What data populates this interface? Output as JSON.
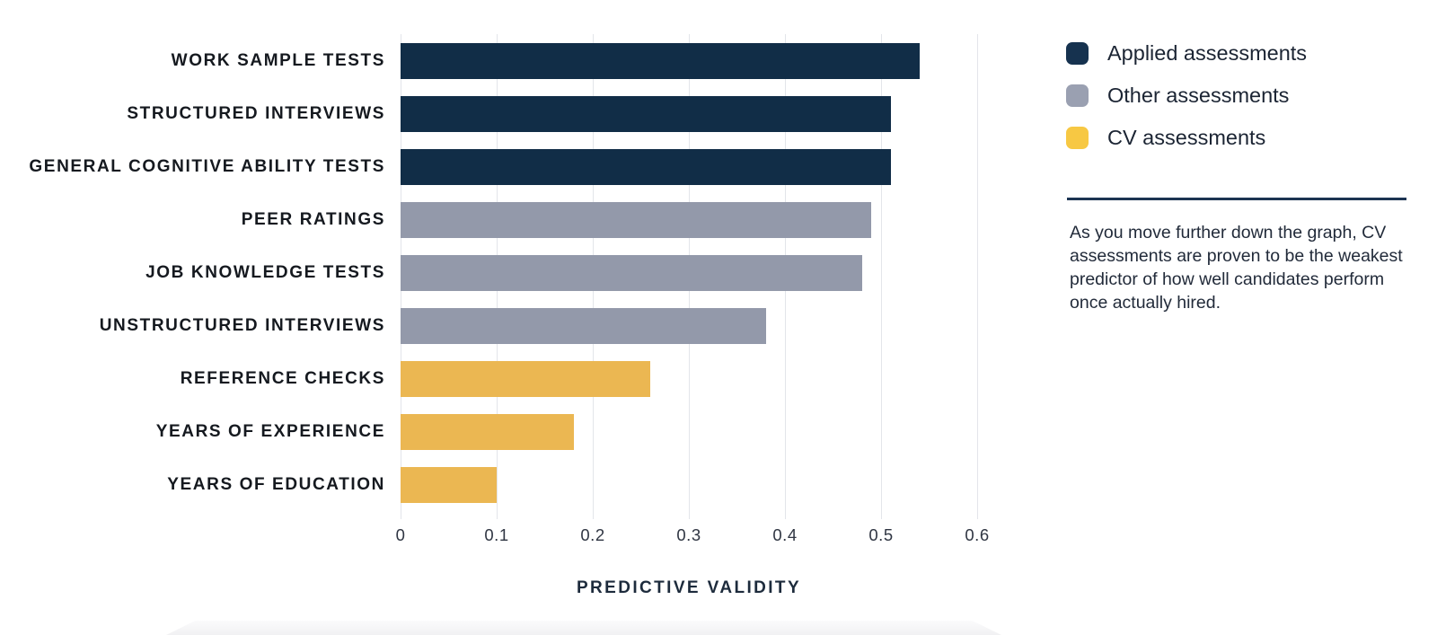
{
  "chart_data": {
    "type": "bar",
    "orientation": "horizontal",
    "title": "",
    "xlabel": "PREDICTIVE VALIDITY",
    "ylabel": "",
    "xlim": [
      0,
      0.6
    ],
    "x_tick_labels": [
      "0",
      "0.1",
      "0.2",
      "0.3",
      "0.4",
      "0.5",
      "0.6"
    ],
    "grid": "vertical-only",
    "legend_position": "top-right",
    "categories": [
      "WORK SAMPLE TESTS",
      "STRUCTURED INTERVIEWS",
      "GENERAL COGNITIVE ABILITY TESTS",
      "PEER RATINGS",
      "JOB KNOWLEDGE TESTS",
      "UNSTRUCTURED INTERVIEWS",
      "REFERENCE CHECKS",
      "YEARS OF EXPERIENCE",
      "YEARS OF EDUCATION"
    ],
    "values": [
      0.54,
      0.51,
      0.51,
      0.49,
      0.48,
      0.38,
      0.26,
      0.18,
      0.1
    ],
    "bar_group_index": [
      0,
      0,
      0,
      1,
      1,
      1,
      2,
      2,
      2
    ],
    "groups": [
      {
        "name": "Applied assessments",
        "bar_color": "#112d47",
        "legend_color": "#16324f"
      },
      {
        "name": "Other assessments",
        "bar_color": "#9399aa",
        "legend_color": "#9aa0b1"
      },
      {
        "name": "CV assessments",
        "bar_color": "#ebb752",
        "legend_color": "#f7c843"
      }
    ]
  },
  "annotation": {
    "text": "As you move further down the graph, CV assessments are proven to be the weakest predictor of how well candidates perform once actually hired."
  },
  "colors": {
    "divider": "#1c3452",
    "gridline": "#e3e5ea",
    "category_label": "#15191f",
    "tick_label": "#2f3542",
    "axis_title": "#1d2b3c",
    "legend_text": "#1b2433",
    "annotation_text": "#222b3a",
    "background": "#ffffff"
  }
}
